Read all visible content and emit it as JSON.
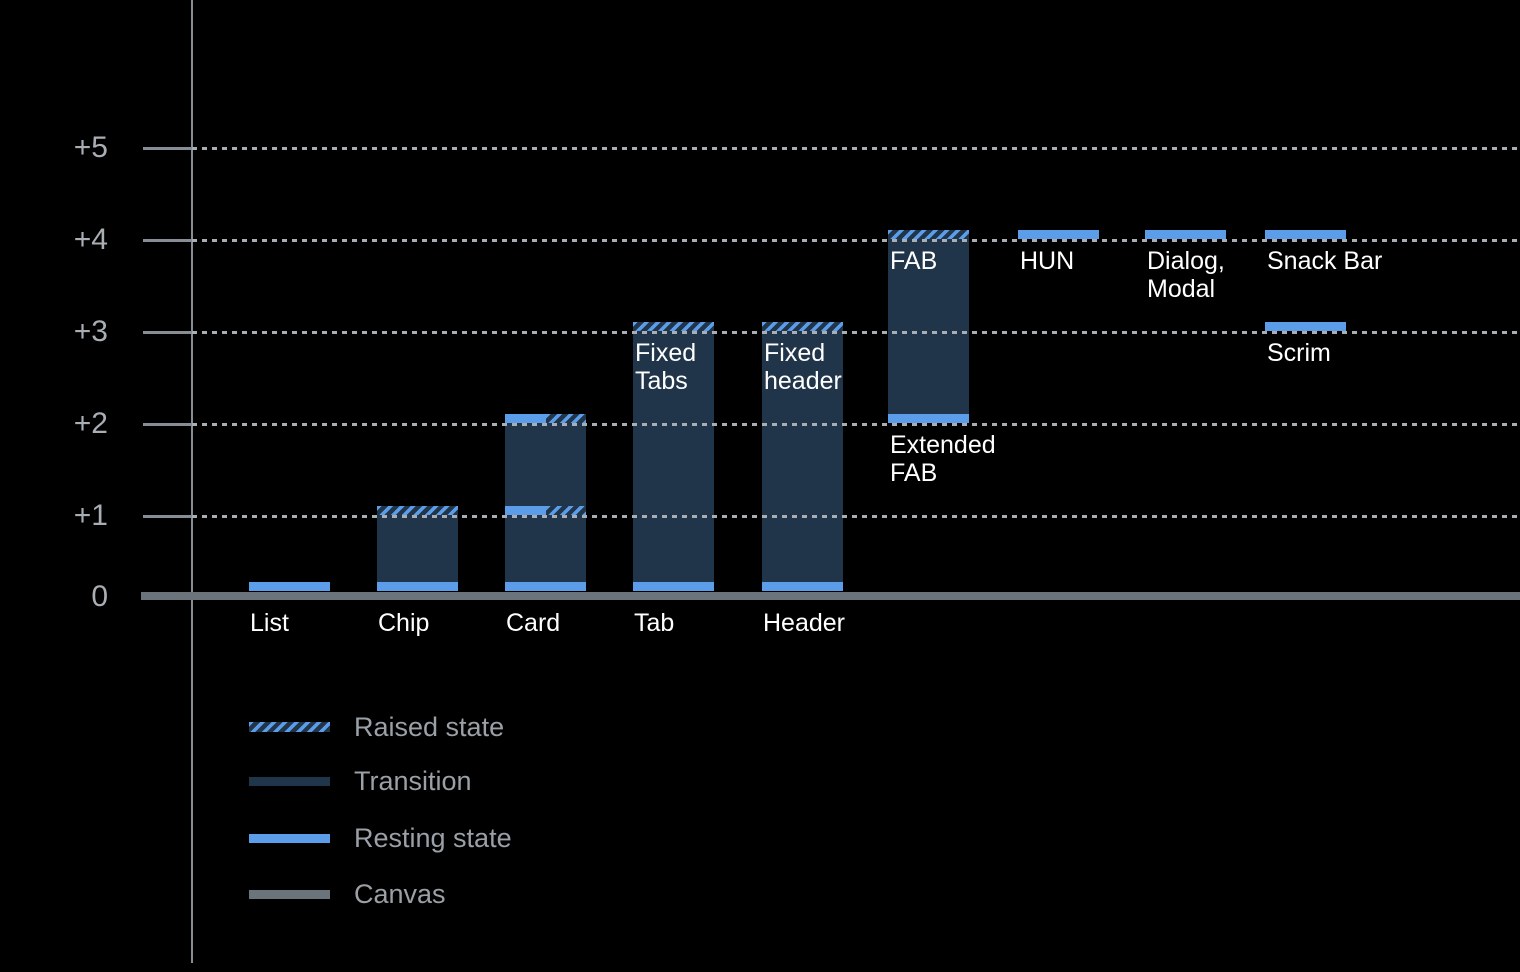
{
  "chart_data": {
    "type": "bar",
    "y_axis": {
      "range": [
        0,
        5
      ],
      "gridline_style": "dotted",
      "ticks": [
        {
          "label": "+5",
          "value": 5
        },
        {
          "label": "+4",
          "value": 4
        },
        {
          "label": "+3",
          "value": 3
        },
        {
          "label": "+2",
          "value": 2
        },
        {
          "label": "+1",
          "value": 1
        },
        {
          "label": "0",
          "value": 0
        }
      ]
    },
    "bars": [
      {
        "name": "list",
        "col": 0,
        "axis_label": "List",
        "segments": [
          {
            "type": "resting",
            "level": 0
          }
        ],
        "labels": []
      },
      {
        "name": "chip",
        "col": 1,
        "axis_label": "Chip",
        "segments": [
          {
            "type": "resting",
            "level": 0
          },
          {
            "type": "transition",
            "from": 0,
            "to": 1
          },
          {
            "type": "raised",
            "level": 1
          }
        ],
        "labels": []
      },
      {
        "name": "card",
        "col": 2,
        "axis_label": "Card",
        "segments": [
          {
            "type": "resting",
            "level": 0
          },
          {
            "type": "transition",
            "from": 0,
            "to": 2
          },
          {
            "type": "split",
            "level": 1
          },
          {
            "type": "split",
            "level": 2
          }
        ],
        "labels": []
      },
      {
        "name": "tab",
        "col": 3,
        "axis_label": "Tab",
        "segments": [
          {
            "type": "resting",
            "level": 0
          },
          {
            "type": "transition",
            "from": 0,
            "to": 3
          },
          {
            "type": "raised",
            "level": 3
          }
        ],
        "labels": [
          {
            "lines": [
              "Fixed",
              "Tabs"
            ],
            "level": 3
          }
        ]
      },
      {
        "name": "header",
        "col": 4,
        "axis_label": "Header",
        "segments": [
          {
            "type": "resting",
            "level": 0
          },
          {
            "type": "transition",
            "from": 0,
            "to": 3
          },
          {
            "type": "raised",
            "level": 3
          }
        ],
        "labels": [
          {
            "lines": [
              "Fixed",
              "header"
            ],
            "level": 3
          }
        ]
      },
      {
        "name": "fab",
        "col": 5,
        "segments": [
          {
            "type": "resting",
            "level": 2
          },
          {
            "type": "transition",
            "from": 2,
            "to": 4
          },
          {
            "type": "raised",
            "level": 4
          }
        ],
        "labels": [
          {
            "lines": [
              "FAB"
            ],
            "level": 4
          },
          {
            "lines": [
              "Extended",
              "FAB"
            ],
            "level": 2
          }
        ]
      },
      {
        "name": "hun",
        "col": 6,
        "segments": [
          {
            "type": "resting",
            "level": 4
          }
        ],
        "labels": [
          {
            "lines": [
              "HUN"
            ],
            "level": 4
          }
        ]
      },
      {
        "name": "dialog-modal",
        "col": 7,
        "segments": [
          {
            "type": "resting",
            "level": 4
          }
        ],
        "labels": [
          {
            "lines": [
              "Dialog,",
              "Modal"
            ],
            "level": 4
          }
        ]
      },
      {
        "name": "snack-bar",
        "col": 8,
        "segments": [
          {
            "type": "resting",
            "level": 4
          }
        ],
        "labels": [
          {
            "lines": [
              "Snack Bar"
            ],
            "level": 4
          }
        ]
      },
      {
        "name": "scrim",
        "col": 8,
        "segments": [
          {
            "type": "resting",
            "level": 3
          }
        ],
        "labels": [
          {
            "lines": [
              "Scrim"
            ],
            "level": 3
          }
        ]
      }
    ],
    "legend": {
      "position": "bottom-left",
      "items": [
        {
          "label": "Raised state",
          "style": "raised"
        },
        {
          "label": "Transition",
          "style": "transition"
        },
        {
          "label": "Resting state",
          "style": "resting"
        },
        {
          "label": "Canvas",
          "style": "canvas"
        }
      ]
    },
    "colors": {
      "background": "#000000",
      "resting": "#5b9de8",
      "transition": "#20344a",
      "canvas": "#6b737b",
      "grid": "#a9aeb4",
      "axis": "#878d94",
      "bar_label": "#ffffff",
      "tick_label": "#a9aeb4",
      "legend_text": "#9aa0a6"
    }
  }
}
